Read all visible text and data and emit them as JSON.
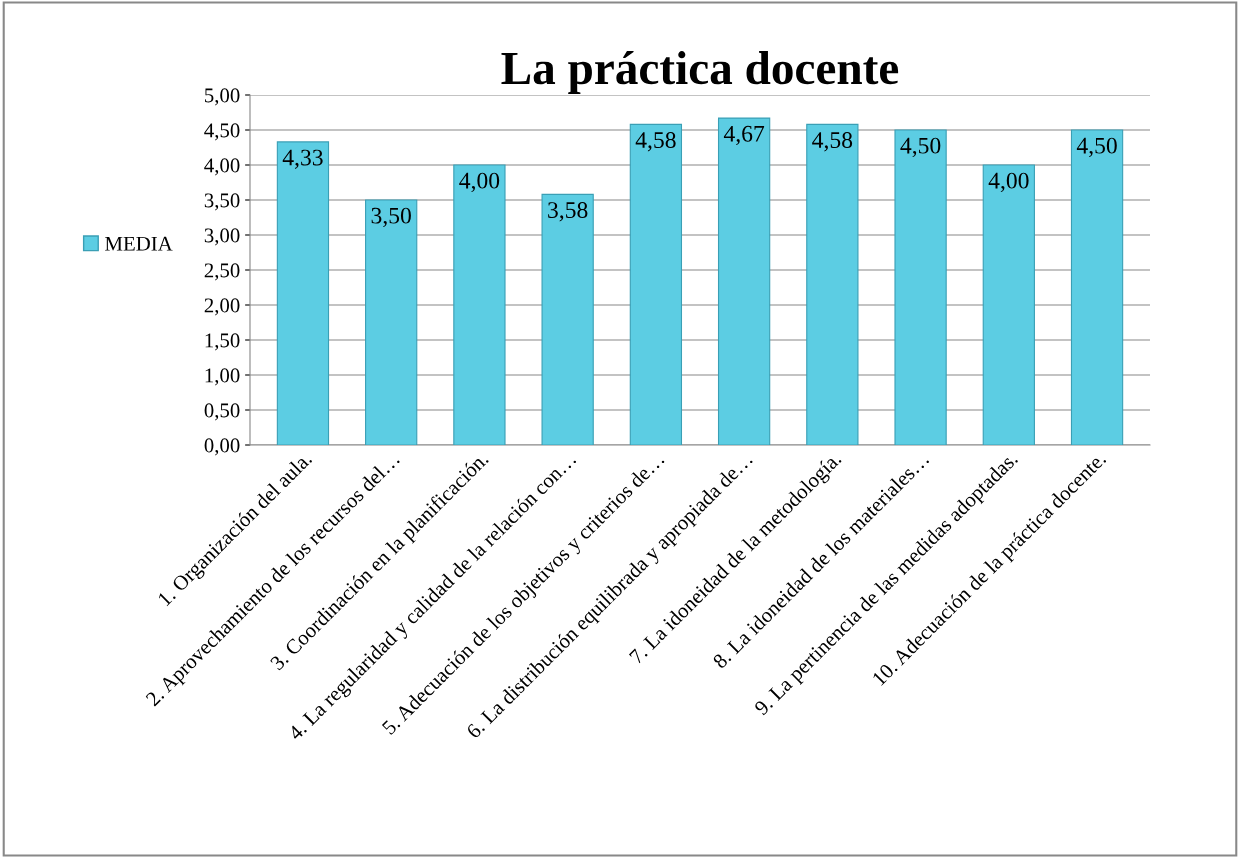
{
  "chart_data": {
    "type": "bar",
    "title": "La práctica docente",
    "categories": [
      "1. Organización del aula.",
      "2. Aprovechamiento de los recursos del…",
      "3. Coordinación en la planificación.",
      "4. La regularidad y calidad de la relación con…",
      "5. Adecuación de los objetivos y criterios de…",
      "6. La distribución equilibrada y apropiada de…",
      "7. La idoneidad de la metodología.",
      "8. La idoneidad de los materiales…",
      "9. La pertinencia de las medidas adoptadas.",
      "10. Adecuación de la práctica docente."
    ],
    "series": [
      {
        "name": "MEDIA",
        "color": "#5ccde3",
        "values": [
          4.33,
          3.5,
          4.0,
          3.58,
          4.58,
          4.67,
          4.58,
          4.5,
          4.0,
          4.5
        ],
        "value_labels": [
          "4,33",
          "3,50",
          "4,00",
          "3,58",
          "4,58",
          "4,67",
          "4,58",
          "4,50",
          "4,00",
          "4,50"
        ]
      }
    ],
    "ylim": [
      0,
      5
    ],
    "yticks": [
      {
        "value": 0,
        "label": "0,00"
      },
      {
        "value": 0.5,
        "label": "0,50"
      },
      {
        "value": 1,
        "label": "1,00"
      },
      {
        "value": 1.5,
        "label": "1,50"
      },
      {
        "value": 2,
        "label": "2,00"
      },
      {
        "value": 2.5,
        "label": "2,50"
      },
      {
        "value": 3,
        "label": "3,00"
      },
      {
        "value": 3.5,
        "label": "3,50"
      },
      {
        "value": 4,
        "label": "4,00"
      },
      {
        "value": 4.5,
        "label": "4,50"
      },
      {
        "value": 5,
        "label": "5,00"
      }
    ],
    "grid": "y",
    "legend": "left"
  }
}
